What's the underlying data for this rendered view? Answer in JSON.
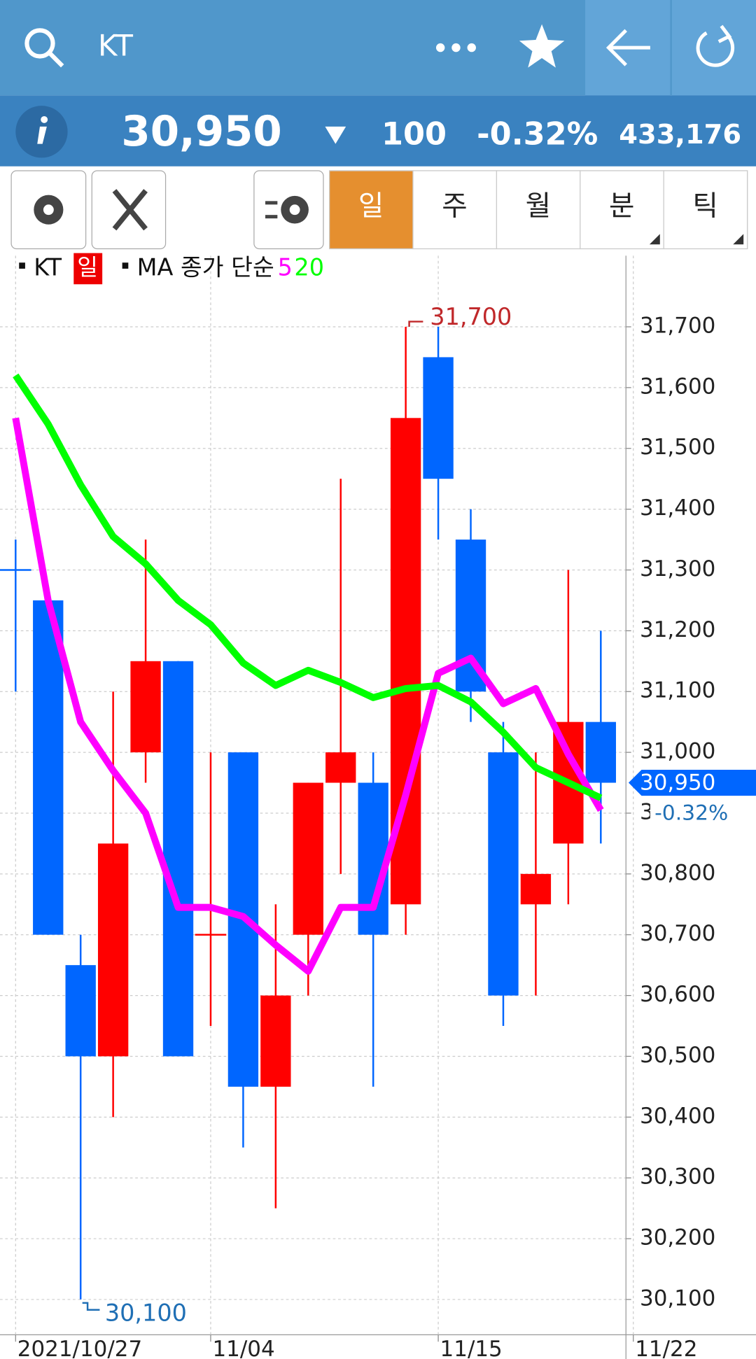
{
  "header": {
    "title": "KT"
  },
  "quote": {
    "price": "30,950",
    "change": "100",
    "change_pct": "-0.32%",
    "volume": "433,176"
  },
  "tabs": [
    "일",
    "주",
    "월",
    "분",
    "틱"
  ],
  "chart_data": {
    "type": "candlestick",
    "legend": {
      "symbol": "KT",
      "period": "일",
      "ma_label": "MA 종가 단순"
    },
    "categories": [
      "2021/10/27",
      null,
      null,
      null,
      null,
      null,
      "11/04",
      null,
      null,
      null,
      null,
      null,
      null,
      "11/15",
      null,
      null,
      null,
      null,
      null,
      "11/22"
    ],
    "open": [
      31300,
      31250,
      30650,
      30500,
      31000,
      31150,
      30700,
      31000,
      30450,
      30700,
      30950,
      30950,
      30750,
      31650,
      31350,
      31000,
      30750,
      30850,
      31050,
      null
    ],
    "high": [
      31350,
      31250,
      30700,
      31100,
      31350,
      31150,
      31000,
      31000,
      30750,
      30950,
      31450,
      31000,
      31700,
      31700,
      31400,
      31050,
      31000,
      31300,
      31200,
      null
    ],
    "low": [
      31100,
      30700,
      30100,
      30400,
      30950,
      30500,
      30550,
      30350,
      30250,
      30600,
      30800,
      30450,
      30700,
      31350,
      31050,
      30550,
      30600,
      30750,
      30850,
      null
    ],
    "close": [
      31300,
      30700,
      30500,
      30850,
      31150,
      30500,
      30700,
      30450,
      30600,
      30950,
      31000,
      30700,
      31550,
      31450,
      31100,
      30600,
      30800,
      31050,
      30950,
      null
    ],
    "up_color": "#ff0000",
    "down_color": "#0066ff",
    "series": [
      {
        "name": "5",
        "color": "#ff00ff",
        "values": [
          31550,
          31250,
          31050,
          30970,
          30900,
          30745,
          30745,
          30730,
          30683,
          30640,
          30745,
          30745,
          30930,
          31130,
          31155,
          31080,
          31105,
          30997,
          30905,
          null
        ]
      },
      {
        "name": "20",
        "color": "#00ff00",
        "values": [
          31620,
          31540,
          31440,
          31355,
          31310,
          31250,
          31210,
          31147,
          31110,
          31135,
          31115,
          31090,
          31105,
          31110,
          31083,
          31033,
          30975,
          30950,
          30925,
          null
        ]
      }
    ],
    "high_label": "31,700",
    "low_label": "30,100",
    "last_label": "30,950",
    "last_change": "-0.32%",
    "ylim": [
      30042,
      31817
    ],
    "yticks": [
      {
        "value": 30100,
        "label": "30,100"
      },
      {
        "value": 30200,
        "label": "30,200"
      },
      {
        "value": 30300,
        "label": "30,300"
      },
      {
        "value": 30400,
        "label": "30,400"
      },
      {
        "value": 30500,
        "label": "30,500"
      },
      {
        "value": 30600,
        "label": "30,600"
      },
      {
        "value": 30700,
        "label": "30,700"
      },
      {
        "value": 30800,
        "label": "30,800"
      },
      {
        "value": 30900,
        "label": "30,900"
      },
      {
        "value": 31000,
        "label": "31,000"
      },
      {
        "value": 31100,
        "label": "31,100"
      },
      {
        "value": 31200,
        "label": "31,200"
      },
      {
        "value": 31300,
        "label": "31,300"
      },
      {
        "value": 31400,
        "label": "31,400"
      },
      {
        "value": 31500,
        "label": "31,500"
      },
      {
        "value": 31600,
        "label": "31,600"
      },
      {
        "value": 31700,
        "label": "31,700"
      }
    ],
    "grid": true
  }
}
